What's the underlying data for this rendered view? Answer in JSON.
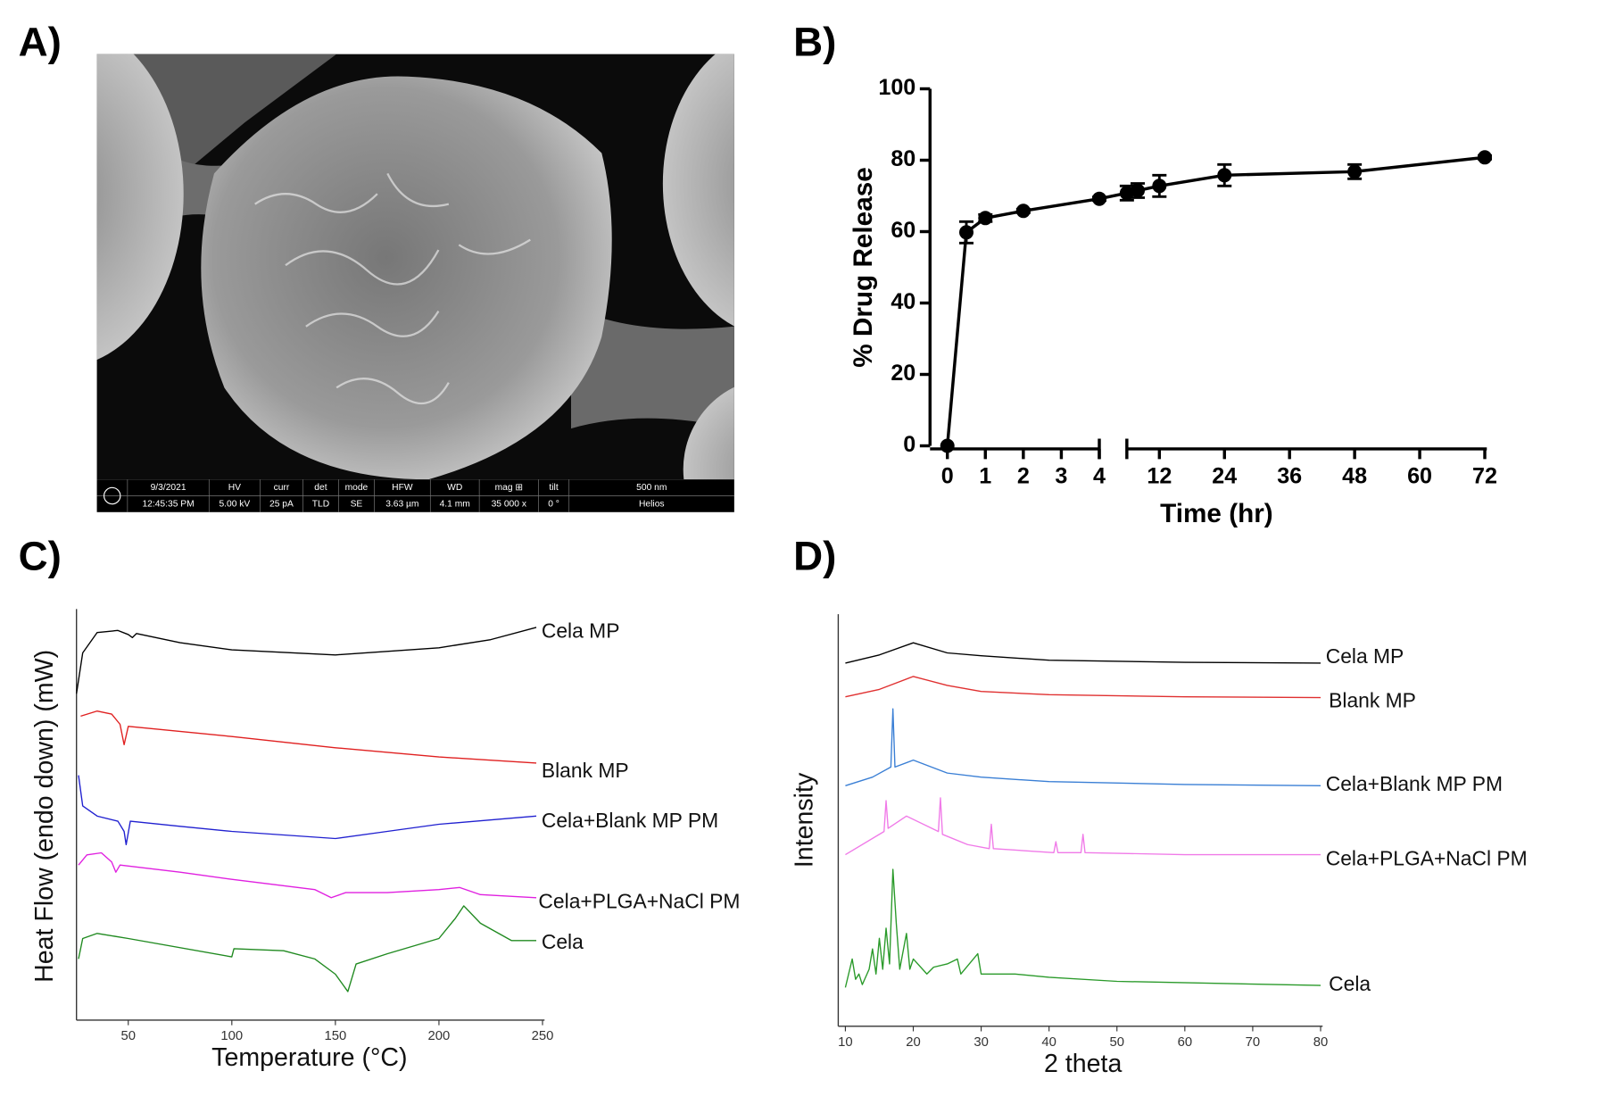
{
  "panel_a": {
    "label": "A)",
    "info": [
      {
        "top": "9/3/2021",
        "bottom": "12:45:35 PM"
      },
      {
        "top": "HV",
        "bottom": "5.00 kV"
      },
      {
        "top": "curr",
        "bottom": "25 pA"
      },
      {
        "top": "det",
        "bottom": "TLD"
      },
      {
        "top": "mode",
        "bottom": "SE"
      },
      {
        "top": "HFW",
        "bottom": "3.63 µm"
      },
      {
        "top": "WD",
        "bottom": "4.1 mm"
      },
      {
        "top": "mag ⊞",
        "bottom": "35 000 x"
      },
      {
        "top": "tilt",
        "bottom": "0 °"
      },
      {
        "top": "500 nm",
        "bottom": "Helios"
      }
    ]
  },
  "chart_data": [
    {
      "label": "B)",
      "type": "line",
      "xlabel": "Time (hr)",
      "ylabel": "% Drug Release",
      "x": [
        0,
        0.5,
        1,
        2,
        4,
        6,
        8,
        12,
        24,
        48,
        72
      ],
      "series": [
        {
          "color": "#000000",
          "values": [
            0,
            59.8,
            63.8,
            65.8,
            69.2,
            70.8,
            71.5,
            72.8,
            75.8,
            76.8,
            80.8
          ],
          "errors": [
            0,
            3,
            1,
            0.5,
            0.5,
            2,
            2,
            3,
            3,
            2,
            0.5
          ]
        }
      ],
      "xlim": [
        0,
        72
      ],
      "x_break": [
        4,
        6
      ],
      "xticks": [
        0,
        1,
        2,
        3,
        4,
        12,
        24,
        36,
        48,
        60,
        72
      ],
      "ylim": [
        0,
        100
      ],
      "yticks": [
        0,
        20,
        40,
        60,
        80,
        100
      ]
    },
    {
      "label": "C)",
      "type": "line",
      "xlabel": "Temperature (°C)",
      "ylabel": "Heat Flow (endo down) (mW)",
      "xlim": [
        25,
        250
      ],
      "xticks": [
        50,
        100,
        150,
        200,
        250
      ],
      "ylim": [
        0,
        100
      ],
      "series": [
        {
          "name": "Cela MP",
          "color": "#000000",
          "x": [
            25,
            28,
            35,
            45,
            50,
            52,
            54,
            75,
            100,
            150,
            200,
            225,
            247
          ],
          "values": [
            80,
            90,
            95,
            95.5,
            94.5,
            93.75,
            94.75,
            92.5,
            90.75,
            89.5,
            91.25,
            93.25,
            96.25
          ]
        },
        {
          "name": "Blank MP",
          "color": "#e02020",
          "x": [
            27,
            35,
            42,
            46,
            48,
            50,
            60,
            100,
            150,
            200,
            247
          ],
          "values": [
            74.5,
            75.75,
            75,
            72.5,
            67.5,
            72,
            71.5,
            69.5,
            66.75,
            64.5,
            63
          ]
        },
        {
          "name": "Cela+Blank MP PM",
          "color": "#2020d0",
          "x": [
            26,
            28,
            35,
            45,
            48,
            49,
            51,
            75,
            100,
            150,
            175,
            200,
            247
          ],
          "values": [
            60,
            52.5,
            50,
            48.75,
            46.25,
            43,
            48.75,
            47.5,
            46.25,
            44.5,
            46.25,
            48,
            50
          ]
        },
        {
          "name": "Cela+PLGA+NaCl PM",
          "color": "#e020e0",
          "x": [
            26,
            30,
            37,
            42,
            44,
            46,
            75,
            100,
            140,
            148,
            155,
            175,
            200,
            210,
            220,
            247
          ],
          "values": [
            38,
            40.5,
            41,
            38.75,
            36.25,
            38,
            36.25,
            34.5,
            32,
            30,
            31.25,
            31.25,
            32,
            32.5,
            30.75,
            30
          ]
        },
        {
          "name": "Cela",
          "color": "#208a20",
          "x": [
            26,
            28,
            35,
            50,
            100,
            101,
            125,
            140,
            150,
            156,
            160,
            175,
            200,
            208,
            212,
            220,
            235,
            247
          ],
          "values": [
            15,
            20,
            21.25,
            20,
            15.5,
            17.5,
            17,
            15,
            11.25,
            7,
            13.75,
            16.25,
            20,
            25,
            28,
            23.75,
            19.5,
            19.5
          ]
        }
      ]
    },
    {
      "label": "D)",
      "type": "line",
      "xlabel": "2 theta",
      "ylabel": "Intensity",
      "xlim": [
        10,
        80
      ],
      "xticks": [
        10,
        20,
        30,
        40,
        50,
        60,
        70,
        80
      ],
      "ylim": [
        0,
        100
      ],
      "series": [
        {
          "name": "Cela MP",
          "color": "#000000",
          "x": [
            10,
            15,
            20,
            25,
            30,
            40,
            60,
            80
          ],
          "values": [
            88.7,
            90.7,
            93.7,
            91.2,
            90.5,
            89.4,
            88.9,
            88.7
          ]
        },
        {
          "name": "Blank MP",
          "color": "#e03030",
          "x": [
            10,
            15,
            20,
            25,
            30,
            40,
            60,
            80
          ],
          "values": [
            80.4,
            82.2,
            85.4,
            83.2,
            81.7,
            80.9,
            80.4,
            80.2
          ]
        },
        {
          "name": "Cela+Blank MP PM",
          "color": "#3a7fd5",
          "x": [
            10,
            14,
            16.7,
            17,
            17.3,
            20,
            25,
            30,
            40,
            60,
            80
          ],
          "values": [
            58.5,
            60.6,
            63.1,
            77.4,
            63.1,
            64.8,
            61.6,
            60.6,
            59.5,
            58.8,
            58.5
          ]
        },
        {
          "name": "Cela+PLGA+NaCl PM",
          "color": "#f07ae8",
          "x": [
            10,
            15.7,
            16,
            16.3,
            19,
            23.7,
            24,
            24.3,
            28,
            31.2,
            31.5,
            31.8,
            40.7,
            41,
            41.3,
            44.7,
            45,
            45.3,
            60,
            80
          ],
          "values": [
            41.5,
            47.2,
            54.8,
            48,
            51,
            47.2,
            55.5,
            46.5,
            44,
            43,
            49,
            43,
            42,
            44.7,
            42,
            42,
            46.5,
            42,
            41.5,
            41.5
          ]
        },
        {
          "name": "Cela",
          "color": "#2a9a2a",
          "x": [
            10,
            11,
            11.5,
            12,
            12.5,
            13.5,
            14,
            14.5,
            15,
            15.5,
            16,
            16.5,
            17,
            17.5,
            18,
            19,
            19.5,
            20,
            22,
            23,
            25,
            26.5,
            27,
            29.5,
            30,
            35,
            40,
            50,
            80
          ],
          "values": [
            8.8,
            15.8,
            10.8,
            12.1,
            9.5,
            13.3,
            18.3,
            12.1,
            20.9,
            13.3,
            23.4,
            14.6,
            37.9,
            24.6,
            13.3,
            22.1,
            13.3,
            15.8,
            12.1,
            13.8,
            14.6,
            15.8,
            12.1,
            17.1,
            12.1,
            12.1,
            11.3,
            10.3,
            9.3
          ]
        }
      ]
    }
  ]
}
